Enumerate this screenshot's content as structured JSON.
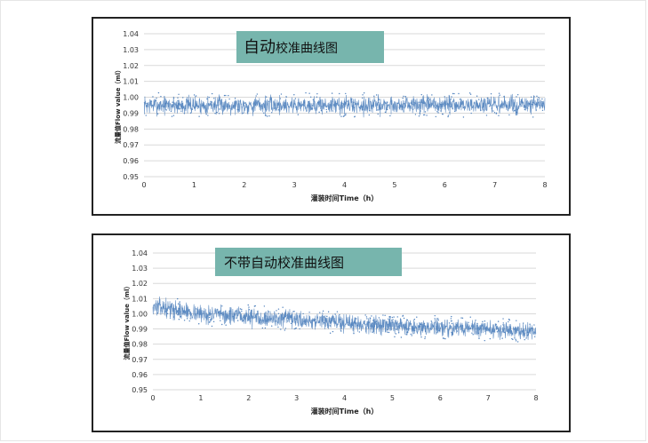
{
  "chart_data": [
    {
      "type": "line",
      "title": "自动校准曲线图",
      "title_parts": [
        "自动",
        "校准曲线图"
      ],
      "xlabel": "灌装时间Time（h）",
      "ylabel": "流量值Flow value（ml）",
      "xlim": [
        0,
        8
      ],
      "ylim": [
        0.95,
        1.04
      ],
      "x_ticks": [
        "0",
        "1",
        "2",
        "3",
        "4",
        "5",
        "6",
        "7",
        "8"
      ],
      "y_ticks": [
        "1.04",
        "1.03",
        "1.02",
        "1.01",
        "1.00",
        "0.99",
        "0.98",
        "0.97",
        "0.96",
        "0.95"
      ],
      "grid": true,
      "series": [
        {
          "color": "#4f81bd",
          "trend": {
            "x": [
              0,
              8
            ],
            "y": [
              0.995,
              0.995
            ]
          },
          "spread": 0.006
        }
      ]
    },
    {
      "type": "line",
      "title": "不带自动校准曲线图",
      "xlabel": "灌装时间Time（h）",
      "ylabel": "流量值Flow value（ml）",
      "xlim": [
        0,
        8
      ],
      "ylim": [
        0.95,
        1.04
      ],
      "x_ticks": [
        "0",
        "1",
        "2",
        "3",
        "4",
        "5",
        "6",
        "7",
        "8"
      ],
      "y_ticks": [
        "1.04",
        "1.03",
        "1.02",
        "1.01",
        "1.00",
        "0.99",
        "0.98",
        "0.97",
        "0.96",
        "0.95"
      ],
      "grid": true,
      "series": [
        {
          "color": "#4f81bd",
          "trend": {
            "x": [
              0,
              1,
              2,
              3,
              4,
              5,
              6,
              7,
              8
            ],
            "y": [
              1.005,
              1.0,
              0.998,
              0.996,
              0.994,
              0.992,
              0.991,
              0.99,
              0.988
            ]
          },
          "spread": 0.006
        }
      ]
    }
  ]
}
